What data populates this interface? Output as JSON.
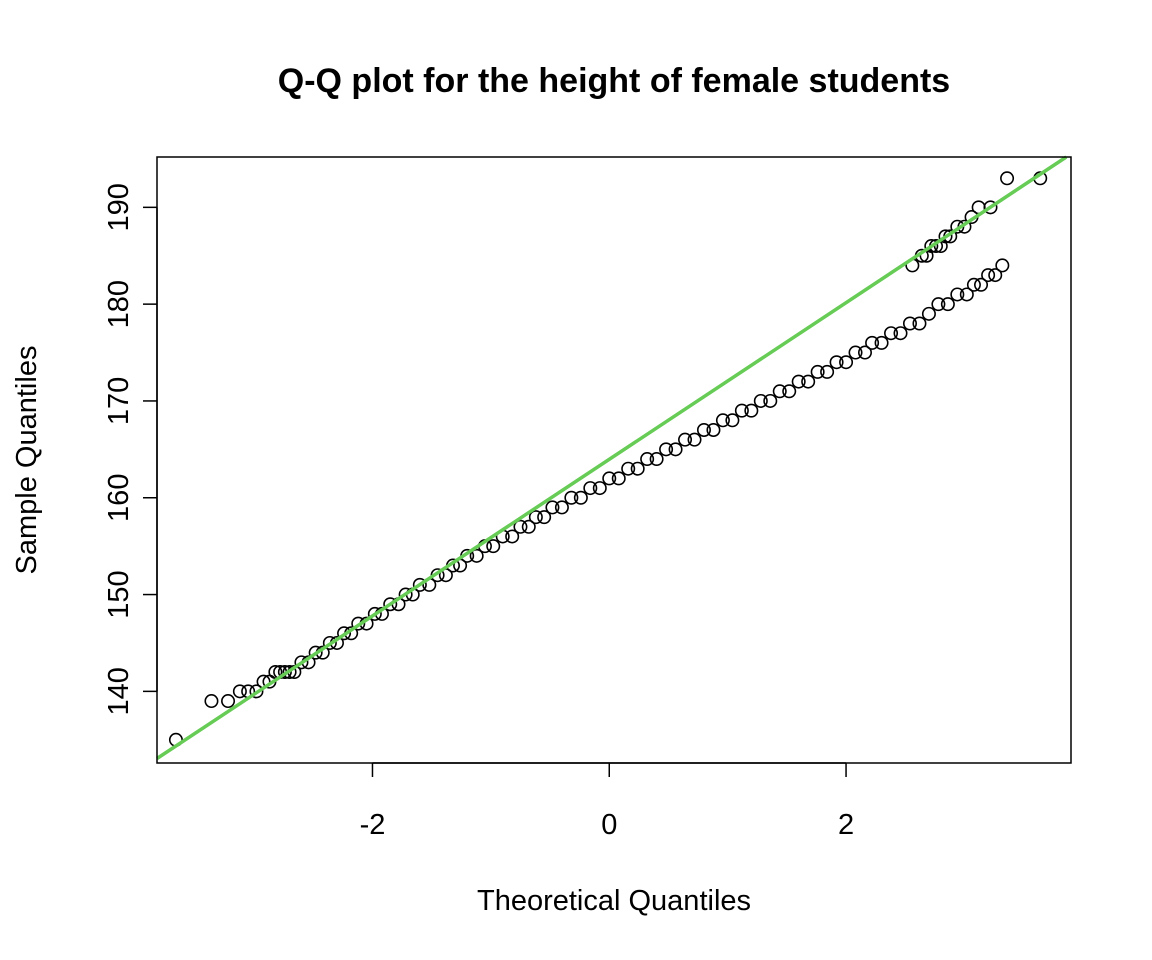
{
  "chart_data": {
    "type": "scatter",
    "title": "Q-Q plot for the height of female students",
    "xlabel": "Theoretical Quantiles",
    "ylabel": "Sample Quantiles",
    "xlim": [
      -3.82,
      3.9
    ],
    "ylim": [
      132.6,
      195.2
    ],
    "x_ticks": [
      -2,
      0,
      2
    ],
    "x_tick_labels": [
      "-2",
      "0",
      "2"
    ],
    "y_ticks": [
      140,
      150,
      160,
      170,
      180,
      190
    ],
    "y_tick_labels": [
      "140",
      "150",
      "160",
      "170",
      "180",
      "190"
    ],
    "grid": false,
    "reference_line": {
      "color": "#66cc55",
      "intercept": 163.97,
      "slope": 8.09
    },
    "series": [
      {
        "marker": "open-circle",
        "color": "#000000",
        "points": [
          [
            -3.66,
            135
          ],
          [
            -3.36,
            139
          ],
          [
            -3.22,
            139
          ],
          [
            -3.12,
            140
          ],
          [
            -3.05,
            140
          ],
          [
            -2.98,
            140
          ],
          [
            -2.92,
            141
          ],
          [
            -2.87,
            141
          ],
          [
            -2.82,
            142
          ],
          [
            -2.78,
            142
          ],
          [
            -2.74,
            142
          ],
          [
            -2.7,
            142
          ],
          [
            -2.66,
            142
          ],
          [
            -2.6,
            143
          ],
          [
            -2.54,
            143
          ],
          [
            -2.48,
            144
          ],
          [
            -2.42,
            144
          ],
          [
            -2.36,
            145
          ],
          [
            -2.3,
            145
          ],
          [
            -2.24,
            146
          ],
          [
            -2.18,
            146
          ],
          [
            -2.12,
            147
          ],
          [
            -2.05,
            147
          ],
          [
            -1.98,
            148
          ],
          [
            -1.92,
            148
          ],
          [
            -1.85,
            149
          ],
          [
            -1.78,
            149
          ],
          [
            -1.72,
            150
          ],
          [
            -1.66,
            150
          ],
          [
            -1.6,
            151
          ],
          [
            -1.52,
            151
          ],
          [
            -1.45,
            152
          ],
          [
            -1.38,
            152
          ],
          [
            -1.32,
            153
          ],
          [
            -1.26,
            153
          ],
          [
            -1.2,
            154
          ],
          [
            -1.12,
            154
          ],
          [
            -1.05,
            155
          ],
          [
            -0.98,
            155
          ],
          [
            -0.9,
            156
          ],
          [
            -0.82,
            156
          ],
          [
            -0.75,
            157
          ],
          [
            -0.68,
            157
          ],
          [
            -0.62,
            158
          ],
          [
            -0.55,
            158
          ],
          [
            -0.48,
            159
          ],
          [
            -0.4,
            159
          ],
          [
            -0.32,
            160
          ],
          [
            -0.24,
            160
          ],
          [
            -0.16,
            161
          ],
          [
            -0.08,
            161
          ],
          [
            0.0,
            162
          ],
          [
            0.08,
            162
          ],
          [
            0.16,
            163
          ],
          [
            0.24,
            163
          ],
          [
            0.32,
            164
          ],
          [
            0.4,
            164
          ],
          [
            0.48,
            165
          ],
          [
            0.56,
            165
          ],
          [
            0.64,
            166
          ],
          [
            0.72,
            166
          ],
          [
            0.8,
            167
          ],
          [
            0.88,
            167
          ],
          [
            0.96,
            168
          ],
          [
            1.04,
            168
          ],
          [
            1.12,
            169
          ],
          [
            1.2,
            169
          ],
          [
            1.28,
            170
          ],
          [
            1.36,
            170
          ],
          [
            1.44,
            171
          ],
          [
            1.52,
            171
          ],
          [
            1.6,
            172
          ],
          [
            1.68,
            172
          ],
          [
            1.76,
            173
          ],
          [
            1.84,
            173
          ],
          [
            1.92,
            174
          ],
          [
            2.0,
            174
          ],
          [
            2.08,
            175
          ],
          [
            2.16,
            175
          ],
          [
            2.22,
            176
          ],
          [
            2.3,
            176
          ],
          [
            2.38,
            177
          ],
          [
            2.46,
            177
          ],
          [
            2.54,
            178
          ],
          [
            2.62,
            178
          ],
          [
            2.7,
            179
          ],
          [
            2.78,
            180
          ],
          [
            2.86,
            180
          ],
          [
            2.94,
            181
          ],
          [
            3.02,
            181
          ],
          [
            3.08,
            182
          ],
          [
            3.14,
            182
          ],
          [
            3.2,
            183
          ],
          [
            3.26,
            183
          ],
          [
            3.32,
            184
          ],
          [
            2.56,
            184
          ],
          [
            2.64,
            185
          ],
          [
            2.68,
            185
          ],
          [
            2.72,
            186
          ],
          [
            2.76,
            186
          ],
          [
            2.8,
            186
          ],
          [
            2.84,
            187
          ],
          [
            2.88,
            187
          ],
          [
            2.94,
            188
          ],
          [
            3.0,
            188
          ],
          [
            3.06,
            189
          ],
          [
            3.12,
            190
          ],
          [
            3.22,
            190
          ],
          [
            3.36,
            193
          ],
          [
            3.64,
            193
          ]
        ]
      }
    ]
  }
}
